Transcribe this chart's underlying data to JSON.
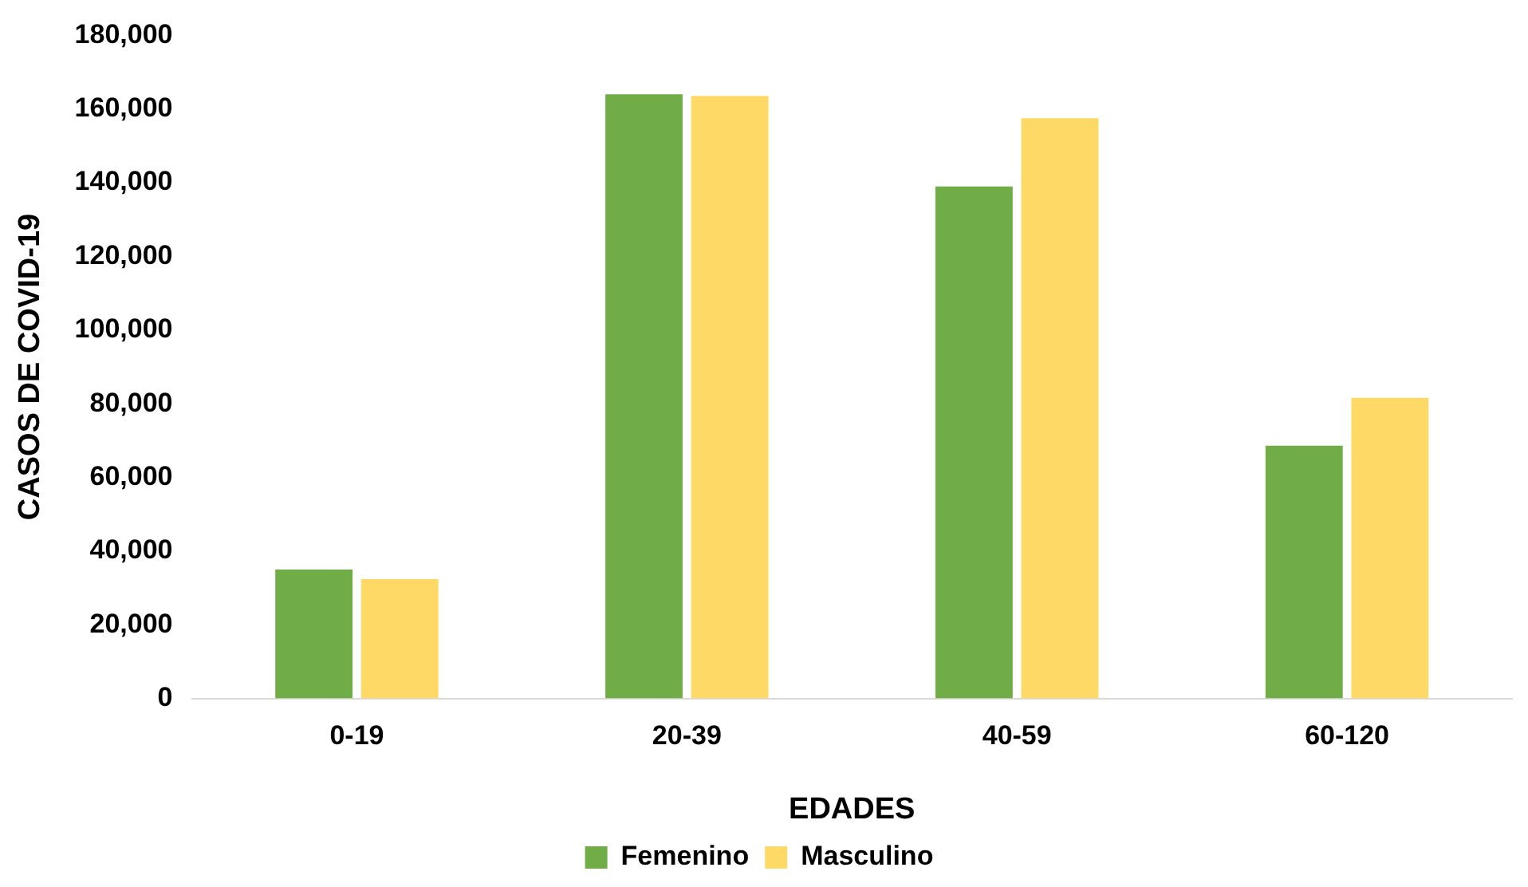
{
  "chart_data": {
    "type": "bar",
    "xlabel": "EDADES",
    "ylabel": "CASOS DE COVID-19",
    "categories": [
      "0-19",
      "20-39",
      "40-59",
      "60-120"
    ],
    "series": [
      {
        "name": "Femenino",
        "color": "#70ad47",
        "values": [
          35000,
          164000,
          139000,
          68600
        ]
      },
      {
        "name": "Masculino",
        "color": "#ffd966",
        "values": [
          32400,
          163600,
          157500,
          81600
        ]
      }
    ],
    "ylim": [
      0,
      180000
    ],
    "yticks": [
      0,
      {
        "value": 20000,
        "label": "20,000"
      },
      {
        "value": 40000,
        "label": "40,000"
      },
      {
        "value": 60000,
        "label": "60,000"
      },
      {
        "value": 80000,
        "label": "80,000"
      },
      {
        "value": 100000,
        "label": "100,000"
      },
      {
        "value": 120000,
        "label": "120,000"
      },
      {
        "value": 140000,
        "label": "140,000"
      },
      {
        "value": 160000,
        "label": "160,000"
      },
      {
        "value": 180000,
        "label": "180,000"
      }
    ],
    "grid": false,
    "legend": "bottom"
  }
}
